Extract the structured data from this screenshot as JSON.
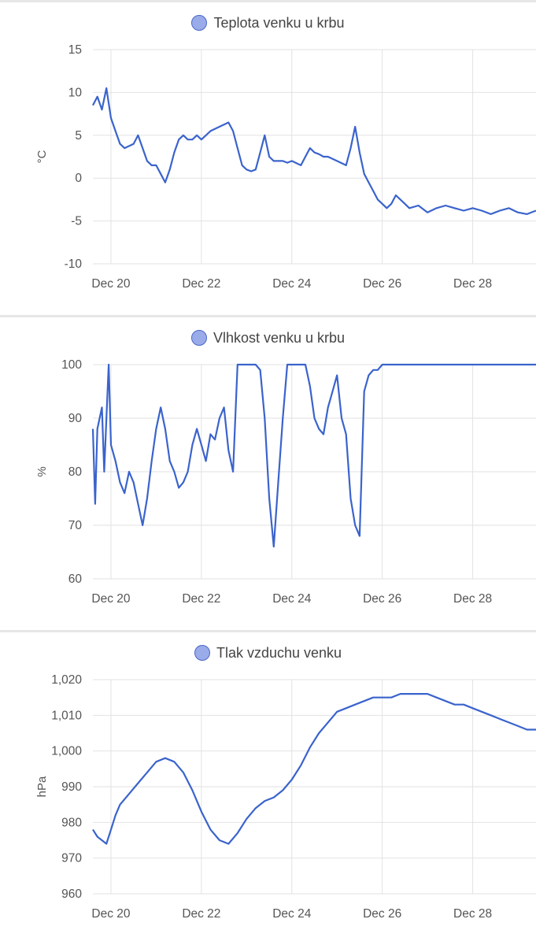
{
  "chart_data": [
    {
      "type": "line",
      "legend": "Teplota venku u krbu",
      "ylabel": "°C",
      "ylim": [
        -10,
        15
      ],
      "yticks": [
        "15",
        "10",
        "5",
        "0",
        "-5",
        "-10"
      ],
      "ytick_values": [
        15,
        10,
        5,
        0,
        -5,
        -10
      ],
      "xlim": [
        19.6,
        29.4
      ],
      "xticks": [
        "Dec 20",
        "Dec 22",
        "Dec 24",
        "Dec 26",
        "Dec 28"
      ],
      "xtick_values": [
        20,
        22,
        24,
        26,
        28
      ],
      "color": "#3a63cc",
      "series": [
        {
          "x": [
            19.6,
            19.7,
            19.8,
            19.9,
            20.0,
            20.1,
            20.2,
            20.3,
            20.5,
            20.6,
            20.7,
            20.8,
            20.9,
            21.0,
            21.1,
            21.2,
            21.3,
            21.4,
            21.5,
            21.6,
            21.7,
            21.8,
            21.9,
            22.0,
            22.2,
            22.4,
            22.6,
            22.7,
            22.8,
            22.9,
            23.0,
            23.1,
            23.2,
            23.3,
            23.4,
            23.5,
            23.6,
            23.7,
            23.8,
            23.9,
            24.0,
            24.2,
            24.3,
            24.4,
            24.5,
            24.6,
            24.7,
            24.8,
            25.0,
            25.2,
            25.3,
            25.4,
            25.5,
            25.6,
            25.7,
            25.8,
            25.9,
            26.0,
            26.1,
            26.2,
            26.3,
            26.4,
            26.5,
            26.6,
            26.8,
            27.0,
            27.2,
            27.4,
            27.6,
            27.8,
            28.0,
            28.2,
            28.4,
            28.5,
            28.6,
            28.8,
            29.0,
            29.2,
            29.4
          ],
          "y": [
            8.5,
            9.5,
            8.0,
            10.5,
            7.0,
            5.5,
            4.0,
            3.5,
            4.0,
            5.0,
            3.5,
            2.0,
            1.5,
            1.5,
            0.5,
            -0.5,
            1.0,
            3.0,
            4.5,
            5.0,
            4.5,
            4.5,
            5.0,
            4.5,
            5.5,
            6.0,
            6.5,
            5.5,
            3.5,
            1.5,
            1.0,
            0.8,
            1.0,
            3.0,
            5.0,
            2.5,
            2.0,
            2.0,
            2.0,
            1.8,
            2.0,
            1.5,
            2.5,
            3.5,
            3.0,
            2.8,
            2.5,
            2.5,
            2.0,
            1.5,
            3.5,
            6.0,
            3.0,
            0.5,
            -0.5,
            -1.5,
            -2.5,
            -3.0,
            -3.5,
            -3.0,
            -2.0,
            -2.5,
            -3.0,
            -3.5,
            -3.2,
            -4.0,
            -3.5,
            -3.2,
            -3.5,
            -3.8,
            -3.5,
            -3.8,
            -4.2,
            -4.0,
            -3.8,
            -3.5,
            -4.0,
            -4.2,
            -3.8
          ]
        }
      ]
    },
    {
      "type": "line",
      "legend": "Vlhkost venku u krbu",
      "ylabel": "%",
      "ylim": [
        60,
        100
      ],
      "yticks": [
        "100",
        "90",
        "80",
        "70",
        "60"
      ],
      "ytick_values": [
        100,
        90,
        80,
        70,
        60
      ],
      "xlim": [
        19.6,
        29.4
      ],
      "xticks": [
        "Dec 20",
        "Dec 22",
        "Dec 24",
        "Dec 26",
        "Dec 28"
      ],
      "xtick_values": [
        20,
        22,
        24,
        26,
        28
      ],
      "color": "#3a63cc",
      "series": [
        {
          "x": [
            19.6,
            19.65,
            19.7,
            19.8,
            19.85,
            19.9,
            19.95,
            20.0,
            20.1,
            20.2,
            20.3,
            20.4,
            20.5,
            20.6,
            20.7,
            20.8,
            20.9,
            21.0,
            21.1,
            21.2,
            21.3,
            21.4,
            21.5,
            21.6,
            21.7,
            21.8,
            21.9,
            22.0,
            22.1,
            22.2,
            22.3,
            22.4,
            22.5,
            22.6,
            22.7,
            22.8,
            23.0,
            23.2,
            23.3,
            23.4,
            23.5,
            23.6,
            23.7,
            23.8,
            23.9,
            24.0,
            24.3,
            24.4,
            24.5,
            24.6,
            24.7,
            24.8,
            24.9,
            25.0,
            25.1,
            25.2,
            25.3,
            25.4,
            25.5,
            25.6,
            25.7,
            25.8,
            25.9,
            26.0,
            26.2,
            26.5,
            27.0,
            27.5,
            28.0,
            28.5,
            29.0,
            29.4
          ],
          "y": [
            88,
            74,
            88,
            92,
            80,
            90,
            100,
            85,
            82,
            78,
            76,
            80,
            78,
            74,
            70,
            75,
            82,
            88,
            92,
            88,
            82,
            80,
            77,
            78,
            80,
            85,
            88,
            85,
            82,
            87,
            86,
            90,
            92,
            84,
            80,
            100,
            100,
            100,
            99,
            90,
            75,
            66,
            78,
            90,
            100,
            100,
            100,
            96,
            90,
            88,
            87,
            92,
            95,
            98,
            90,
            87,
            75,
            70,
            68,
            95,
            98,
            99,
            99,
            100,
            100,
            100,
            100,
            100,
            100,
            100,
            100,
            100
          ]
        }
      ]
    },
    {
      "type": "line",
      "legend": "Tlak vzduchu venku",
      "ylabel": "hPa",
      "ylim": [
        960,
        1020
      ],
      "yticks": [
        "1,020",
        "1,010",
        "1,000",
        "990",
        "980",
        "970",
        "960"
      ],
      "ytick_values": [
        1020,
        1010,
        1000,
        990,
        980,
        970,
        960
      ],
      "xlim": [
        19.6,
        29.4
      ],
      "xticks": [
        "Dec 20",
        "Dec 22",
        "Dec 24",
        "Dec 26",
        "Dec 28"
      ],
      "xtick_values": [
        20,
        22,
        24,
        26,
        28
      ],
      "color": "#3a63cc",
      "series": [
        {
          "x": [
            19.6,
            19.7,
            19.8,
            19.9,
            20.0,
            20.1,
            20.2,
            20.4,
            20.6,
            20.8,
            21.0,
            21.2,
            21.4,
            21.6,
            21.8,
            22.0,
            22.2,
            22.4,
            22.6,
            22.8,
            23.0,
            23.2,
            23.4,
            23.6,
            23.8,
            24.0,
            24.2,
            24.4,
            24.6,
            24.8,
            25.0,
            25.2,
            25.4,
            25.6,
            25.8,
            26.0,
            26.2,
            26.4,
            26.6,
            26.8,
            27.0,
            27.2,
            27.4,
            27.6,
            27.8,
            28.0,
            28.2,
            28.4,
            28.6,
            28.8,
            29.0,
            29.2,
            29.4
          ],
          "y": [
            978,
            976,
            975,
            974,
            978,
            982,
            985,
            988,
            991,
            994,
            997,
            998,
            997,
            994,
            989,
            983,
            978,
            975,
            974,
            977,
            981,
            984,
            986,
            987,
            989,
            992,
            996,
            1001,
            1005,
            1008,
            1011,
            1012,
            1013,
            1014,
            1015,
            1015,
            1015,
            1016,
            1016,
            1016,
            1016,
            1015,
            1014,
            1013,
            1013,
            1012,
            1011,
            1010,
            1009,
            1008,
            1007,
            1006,
            1006
          ]
        }
      ]
    }
  ]
}
